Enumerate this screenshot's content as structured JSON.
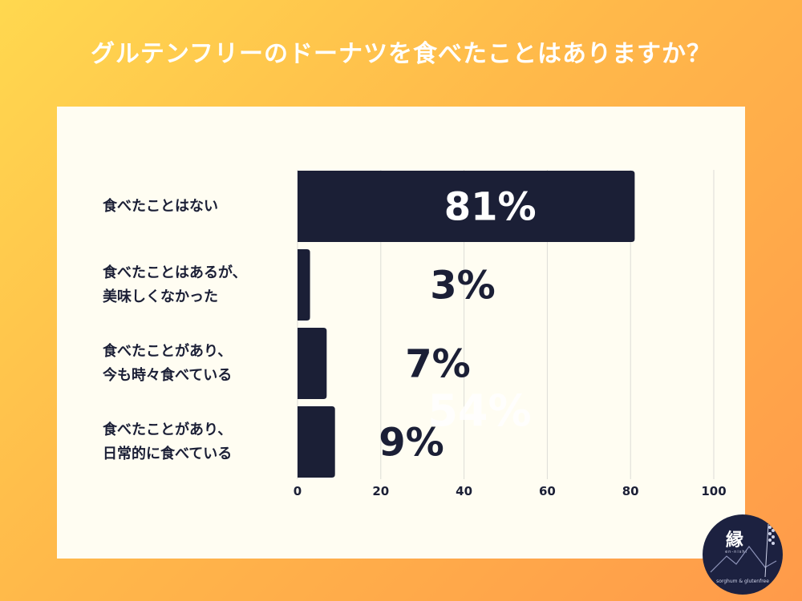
{
  "page": {
    "title": "グルテンフリーのドーナツを食べたことはありますか？"
  },
  "colors": {
    "bar": "#1b1f36",
    "grid": "#dcdcd6",
    "panel": "#fffdf2",
    "ghost_label": "#ffffff"
  },
  "chart_data": {
    "type": "bar",
    "orientation": "horizontal",
    "title": "グルテンフリーのドーナツを食べたことはありますか？",
    "categories": [
      [
        "食べたことはない"
      ],
      [
        "食べたことはあるが、",
        "美味しくなかった"
      ],
      [
        "食べたことがあり、",
        "今も時々食べている"
      ],
      [
        "食べたことがあり、",
        "日常的に食べている"
      ]
    ],
    "values": [
      81,
      3,
      7,
      9
    ],
    "value_labels": [
      "81%",
      "3%",
      "7%",
      "9%"
    ],
    "xlim": [
      0,
      100
    ],
    "xticks": [
      0,
      20,
      40,
      60,
      80,
      100
    ],
    "xtick_labels": [
      "0",
      "20",
      "40",
      "60",
      "80",
      "100"
    ],
    "grid": true,
    "legend": "none",
    "stray_label": "54%"
  },
  "logo": {
    "mark": "縁",
    "sub": "en-nishi",
    "tagline": "sorghum & glutenfree",
    "icon": "mountain-rice-logo"
  }
}
